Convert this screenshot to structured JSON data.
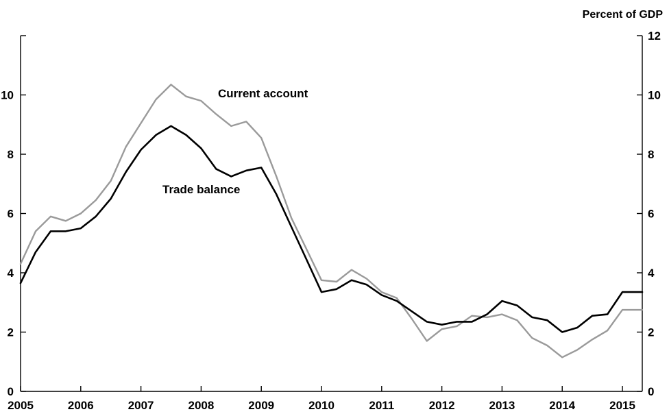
{
  "chart_data": {
    "type": "line",
    "title": "",
    "xlabel": "",
    "ylabel": "Percent of GDP",
    "ylim": [
      0,
      12
    ],
    "xlim": [
      2005.0,
      2015.33
    ],
    "y_ticks": [
      0,
      2,
      4,
      6,
      8,
      10,
      12
    ],
    "y_tick_labels": [
      "0",
      "2",
      "4",
      "6",
      "8",
      "10",
      "12"
    ],
    "x_ticks": [
      2005,
      2006,
      2007,
      2008,
      2009,
      2010,
      2011,
      2012,
      2013,
      2014,
      2015
    ],
    "x_tick_labels": [
      "2005",
      "2006",
      "2007",
      "2008",
      "2009",
      "2010",
      "2011",
      "2012",
      "2013",
      "2014",
      "2015"
    ],
    "grid": false,
    "right_axis_ticks_labeled": true,
    "left_axis_ticks_labeled": "0–10 only (no 12)",
    "series": [
      {
        "name": "Current account",
        "color": "#9a9a9a",
        "x": [
          2005.0,
          2005.25,
          2005.5,
          2005.75,
          2006.0,
          2006.25,
          2006.5,
          2006.75,
          2007.0,
          2007.25,
          2007.5,
          2007.75,
          2008.0,
          2008.25,
          2008.5,
          2008.75,
          2009.0,
          2009.25,
          2009.5,
          2009.75,
          2010.0,
          2010.25,
          2010.5,
          2010.75,
          2011.0,
          2011.25,
          2011.5,
          2011.75,
          2012.0,
          2012.25,
          2012.5,
          2012.75,
          2013.0,
          2013.25,
          2013.5,
          2013.75,
          2014.0,
          2014.25,
          2014.5,
          2014.75,
          2015.0,
          2015.33
        ],
        "values": [
          4.3,
          5.4,
          5.9,
          5.75,
          6.0,
          6.45,
          7.1,
          8.25,
          9.05,
          9.85,
          10.35,
          9.95,
          9.8,
          9.35,
          8.95,
          9.1,
          8.55,
          7.25,
          5.85,
          4.8,
          3.75,
          3.7,
          4.1,
          3.8,
          3.35,
          3.15,
          2.45,
          1.7,
          2.1,
          2.2,
          2.55,
          2.5,
          2.6,
          2.4,
          1.8,
          1.55,
          1.15,
          1.4,
          1.75,
          2.05,
          2.75,
          2.75
        ]
      },
      {
        "name": "Trade balance",
        "color": "#000000",
        "x": [
          2005.0,
          2005.25,
          2005.5,
          2005.6,
          2005.75,
          2006.0,
          2006.25,
          2006.5,
          2006.75,
          2007.0,
          2007.25,
          2007.5,
          2007.75,
          2008.0,
          2008.25,
          2008.5,
          2008.75,
          2009.0,
          2009.25,
          2009.5,
          2009.75,
          2010.0,
          2010.25,
          2010.5,
          2010.75,
          2011.0,
          2011.25,
          2011.5,
          2011.75,
          2012.0,
          2012.25,
          2012.5,
          2012.75,
          2013.0,
          2013.25,
          2013.5,
          2013.75,
          2014.0,
          2014.25,
          2014.5,
          2014.75,
          2015.0,
          2015.33
        ],
        "values": [
          3.65,
          4.7,
          5.4,
          5.4,
          5.4,
          5.5,
          5.9,
          6.5,
          7.4,
          8.15,
          8.65,
          8.95,
          8.65,
          8.2,
          7.5,
          7.25,
          7.45,
          7.55,
          6.65,
          5.55,
          4.45,
          3.35,
          3.45,
          3.75,
          3.6,
          3.25,
          3.05,
          2.7,
          2.35,
          2.25,
          2.35,
          2.35,
          2.6,
          3.05,
          2.9,
          2.5,
          2.4,
          2.0,
          2.15,
          2.55,
          2.6,
          3.35,
          3.35
        ]
      }
    ],
    "annotations": [
      {
        "text": "Current account",
        "series": "Current account"
      },
      {
        "text": "Trade balance",
        "series": "Trade balance"
      }
    ]
  }
}
